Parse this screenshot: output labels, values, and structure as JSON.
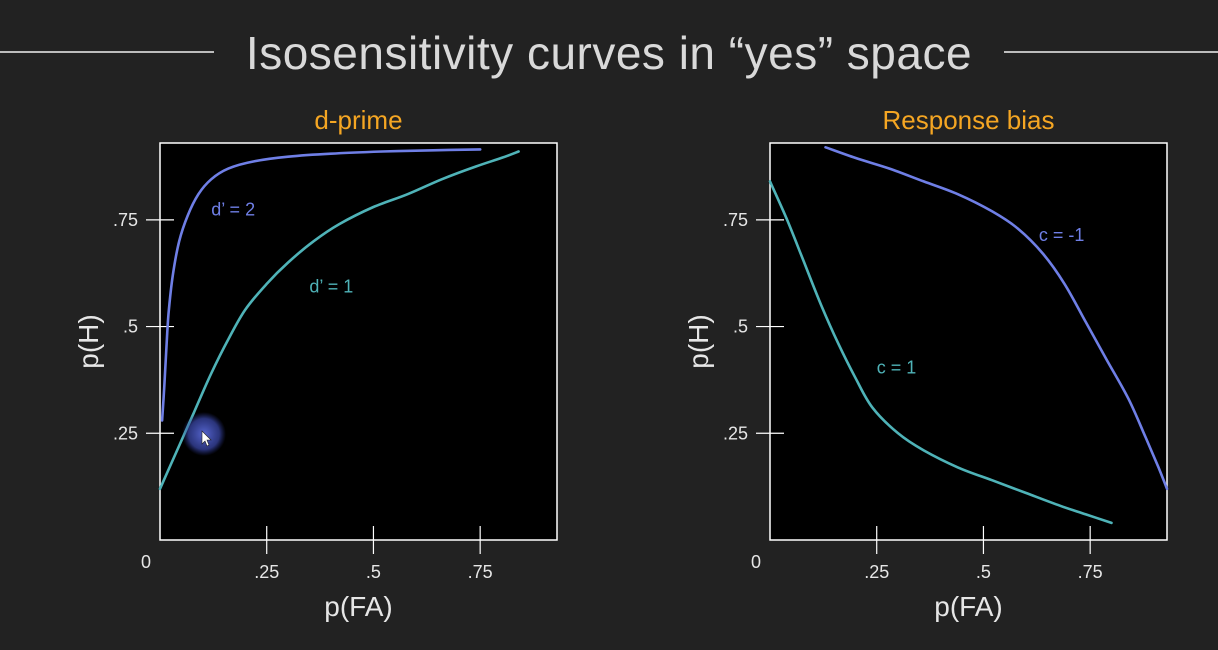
{
  "page": {
    "title": "Isosensitivity curves in “yes” space"
  },
  "colors": {
    "background": "#222222",
    "plot_background": "#000000",
    "accent_title": "#f5a623",
    "blue_curve": "#6f7fe6",
    "teal_curve": "#4fb3b8",
    "axis": "#ffffff"
  },
  "chart_data": [
    {
      "type": "line",
      "title": "d-prime",
      "xlabel": "p(FA)",
      "ylabel": "p(H)",
      "origin_label": "0",
      "xlim": [
        0.0,
        0.93
      ],
      "ylim": [
        0.0,
        0.93
      ],
      "xticks": [
        0.25,
        0.5,
        0.75
      ],
      "xtick_labels": [
        ".25",
        ".5",
        ".75"
      ],
      "yticks": [
        0.25,
        0.5,
        0.75
      ],
      "ytick_labels": [
        ".25",
        ".5",
        ".75"
      ],
      "series": [
        {
          "name": "d’ = 2",
          "color": "#6f7fe6",
          "label_at": [
            0.12,
            0.76
          ],
          "points": [
            [
              0.005,
              0.28
            ],
            [
              0.01,
              0.36
            ],
            [
              0.015,
              0.45
            ],
            [
              0.02,
              0.53
            ],
            [
              0.03,
              0.62
            ],
            [
              0.045,
              0.7
            ],
            [
              0.065,
              0.76
            ],
            [
              0.09,
              0.81
            ],
            [
              0.12,
              0.845
            ],
            [
              0.16,
              0.87
            ],
            [
              0.22,
              0.887
            ],
            [
              0.3,
              0.898
            ],
            [
              0.4,
              0.905
            ],
            [
              0.52,
              0.91
            ],
            [
              0.64,
              0.913
            ],
            [
              0.75,
              0.915
            ]
          ]
        },
        {
          "name": "d’ = 1",
          "color": "#4fb3b8",
          "label_at": [
            0.35,
            0.58
          ],
          "points": [
            [
              0.0,
              0.12
            ],
            [
              0.04,
              0.21
            ],
            [
              0.08,
              0.3
            ],
            [
              0.12,
              0.39
            ],
            [
              0.16,
              0.47
            ],
            [
              0.2,
              0.54
            ],
            [
              0.25,
              0.6
            ],
            [
              0.3,
              0.65
            ],
            [
              0.36,
              0.7
            ],
            [
              0.42,
              0.74
            ],
            [
              0.5,
              0.78
            ],
            [
              0.58,
              0.81
            ],
            [
              0.66,
              0.845
            ],
            [
              0.74,
              0.875
            ],
            [
              0.8,
              0.895
            ],
            [
              0.84,
              0.91
            ]
          ]
        }
      ]
    },
    {
      "type": "line",
      "title": "Response bias",
      "xlabel": "p(FA)",
      "ylabel": "p(H)",
      "origin_label": "0",
      "xlim": [
        0.0,
        0.93
      ],
      "ylim": [
        0.0,
        0.93
      ],
      "xticks": [
        0.25,
        0.5,
        0.75
      ],
      "xtick_labels": [
        ".25",
        ".5",
        ".75"
      ],
      "yticks": [
        0.25,
        0.5,
        0.75
      ],
      "ytick_labels": [
        ".25",
        ".5",
        ".75"
      ],
      "series": [
        {
          "name": "c = -1",
          "color": "#6f7fe6",
          "label_at": [
            0.63,
            0.7
          ],
          "points": [
            [
              0.13,
              0.92
            ],
            [
              0.2,
              0.895
            ],
            [
              0.28,
              0.87
            ],
            [
              0.36,
              0.84
            ],
            [
              0.44,
              0.81
            ],
            [
              0.52,
              0.77
            ],
            [
              0.58,
              0.73
            ],
            [
              0.64,
              0.67
            ],
            [
              0.69,
              0.6
            ],
            [
              0.74,
              0.51
            ],
            [
              0.79,
              0.42
            ],
            [
              0.84,
              0.33
            ],
            [
              0.88,
              0.24
            ],
            [
              0.91,
              0.17
            ],
            [
              0.93,
              0.12
            ]
          ]
        },
        {
          "name": "c = 1",
          "color": "#4fb3b8",
          "label_at": [
            0.25,
            0.39
          ],
          "points": [
            [
              0.0,
              0.84
            ],
            [
              0.04,
              0.75
            ],
            [
              0.08,
              0.65
            ],
            [
              0.12,
              0.55
            ],
            [
              0.16,
              0.46
            ],
            [
              0.2,
              0.38
            ],
            [
              0.24,
              0.31
            ],
            [
              0.3,
              0.25
            ],
            [
              0.36,
              0.21
            ],
            [
              0.44,
              0.17
            ],
            [
              0.52,
              0.14
            ],
            [
              0.6,
              0.11
            ],
            [
              0.68,
              0.08
            ],
            [
              0.74,
              0.06
            ],
            [
              0.8,
              0.04
            ]
          ]
        }
      ]
    }
  ]
}
